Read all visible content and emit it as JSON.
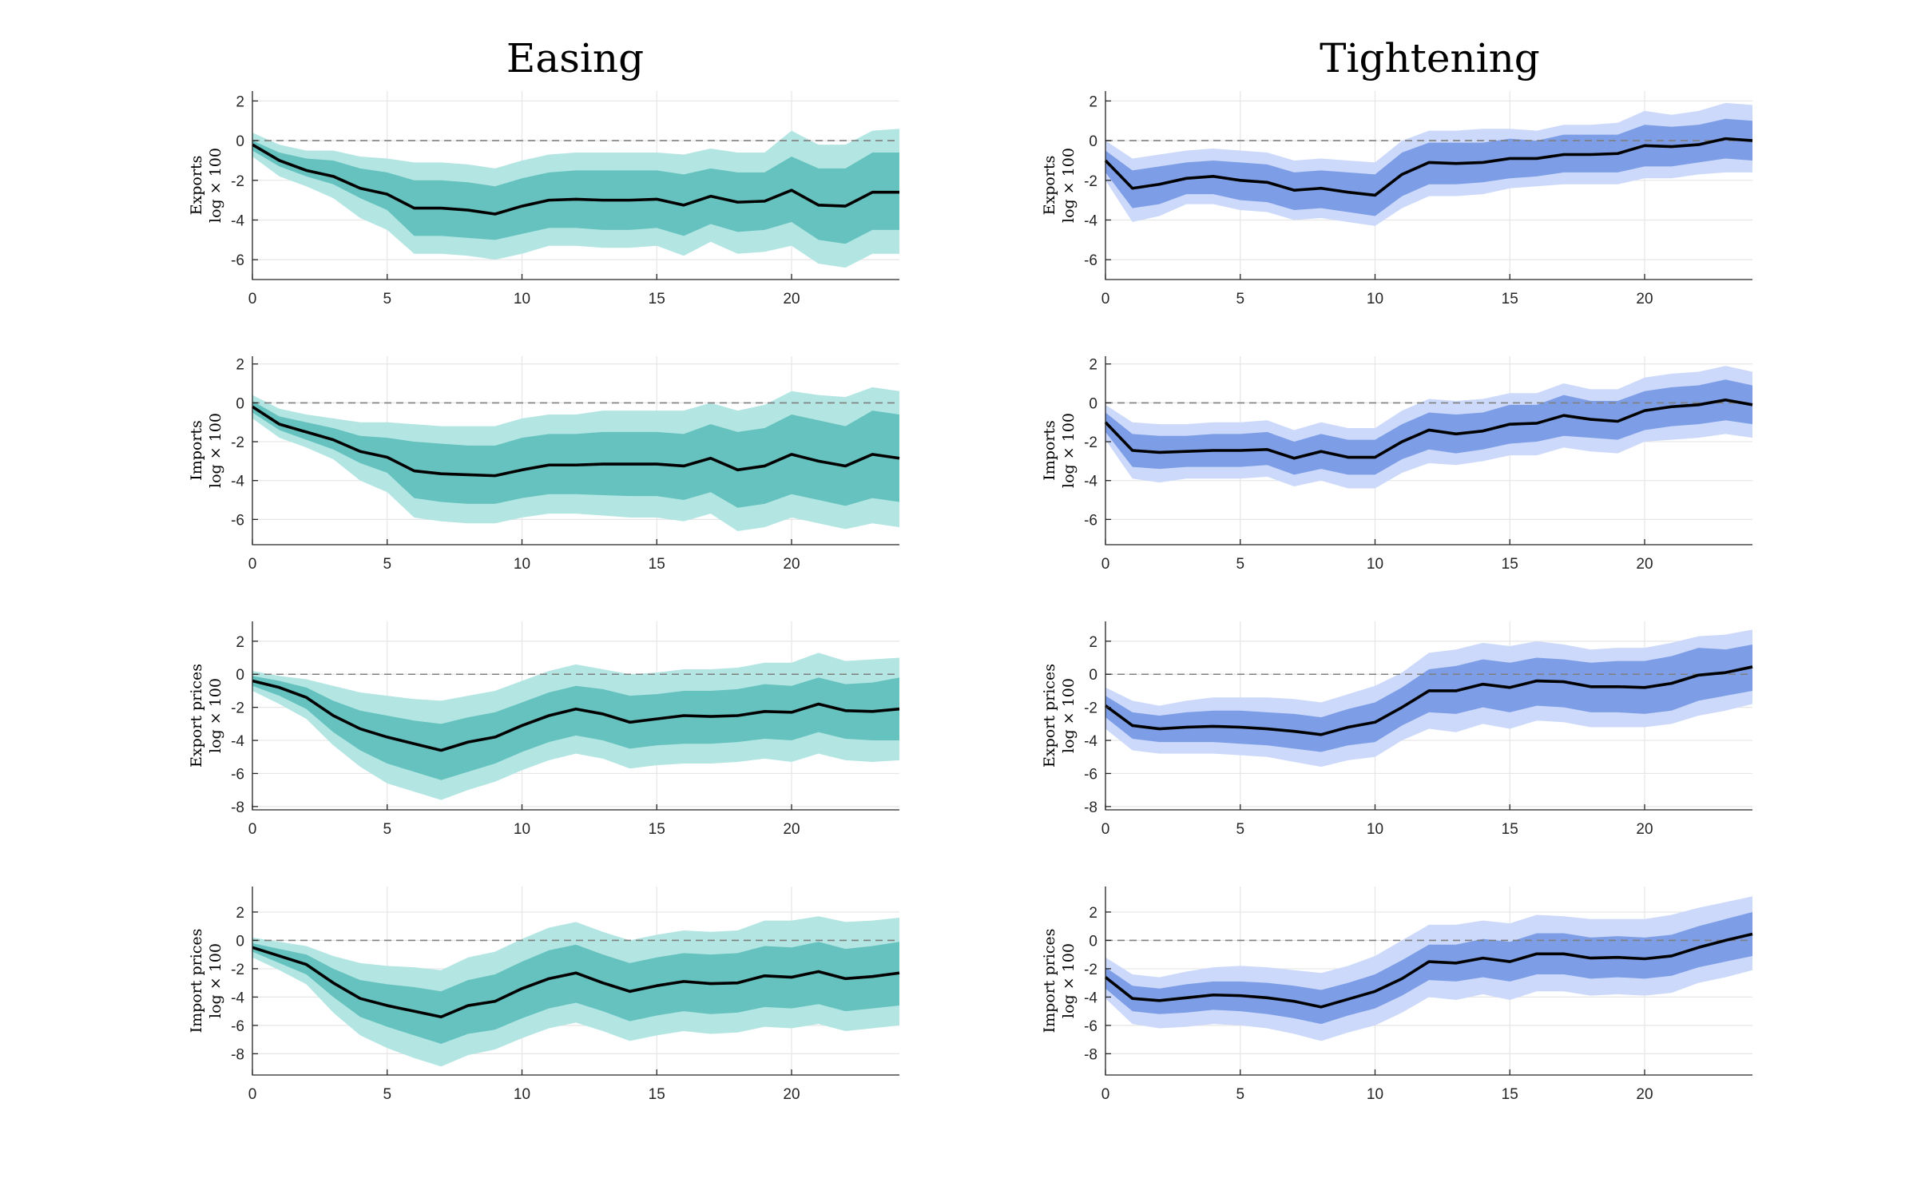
{
  "figure": {
    "columns": [
      {
        "title": "Easing",
        "outer_color": "#b3e6e3",
        "inner_color": "#66c2bf"
      },
      {
        "title": "Tightening",
        "outer_color": "#ccd9fa",
        "inner_color": "#7d9ee6"
      }
    ],
    "ylabel_unit": "log × 100"
  },
  "chart_data": [
    {
      "type": "line",
      "column": "Easing",
      "ylabel": "Exports",
      "xlim": [
        0,
        24
      ],
      "ylim": [
        -7,
        2.5
      ],
      "xticks": [
        0,
        5,
        10,
        15,
        20
      ],
      "yticks": [
        2,
        0,
        -2,
        -4,
        -6
      ],
      "median": [
        -0.2,
        -1.0,
        -1.5,
        -1.8,
        -2.4,
        -2.7,
        -3.4,
        -3.4,
        -3.5,
        -3.7,
        -3.3,
        -3.0,
        -2.95,
        -3.0,
        -3.0,
        -2.95,
        -3.25,
        -2.8,
        -3.1,
        -3.05,
        -2.5,
        -3.25,
        -3.3,
        -2.6,
        -2.6
      ],
      "inner_lower": [
        -0.5,
        -1.3,
        -1.8,
        -2.2,
        -2.9,
        -3.5,
        -4.8,
        -4.8,
        -4.9,
        -5.0,
        -4.7,
        -4.4,
        -4.4,
        -4.5,
        -4.5,
        -4.4,
        -4.8,
        -4.2,
        -4.6,
        -4.5,
        -4.1,
        -5.0,
        -5.2,
        -4.5,
        -4.5
      ],
      "inner_upper": [
        0.0,
        -0.6,
        -0.9,
        -1.0,
        -1.4,
        -1.6,
        -2.0,
        -2.0,
        -2.1,
        -2.3,
        -1.9,
        -1.6,
        -1.5,
        -1.5,
        -1.5,
        -1.5,
        -1.7,
        -1.4,
        -1.6,
        -1.6,
        -0.8,
        -1.4,
        -1.4,
        -0.6,
        -0.6
      ],
      "outer_lower": [
        -0.8,
        -1.8,
        -2.3,
        -2.9,
        -3.9,
        -4.5,
        -5.7,
        -5.7,
        -5.8,
        -6.0,
        -5.7,
        -5.3,
        -5.3,
        -5.4,
        -5.4,
        -5.3,
        -5.8,
        -5.1,
        -5.7,
        -5.6,
        -5.3,
        -6.2,
        -6.4,
        -5.7,
        -5.7
      ],
      "outer_upper": [
        0.4,
        -0.2,
        -0.5,
        -0.5,
        -0.8,
        -0.9,
        -1.1,
        -1.1,
        -1.2,
        -1.4,
        -1.0,
        -0.7,
        -0.6,
        -0.6,
        -0.6,
        -0.6,
        -0.7,
        -0.4,
        -0.6,
        -0.6,
        0.5,
        -0.2,
        -0.2,
        0.5,
        0.6
      ]
    },
    {
      "type": "line",
      "column": "Tightening",
      "ylabel": "Exports",
      "xlim": [
        0,
        24
      ],
      "ylim": [
        -7,
        2.5
      ],
      "xticks": [
        0,
        5,
        10,
        15,
        20
      ],
      "yticks": [
        2,
        0,
        -2,
        -4,
        -6
      ],
      "median": [
        -1.0,
        -2.4,
        -2.2,
        -1.9,
        -1.8,
        -2.0,
        -2.1,
        -2.5,
        -2.4,
        -2.6,
        -2.75,
        -1.7,
        -1.1,
        -1.15,
        -1.1,
        -0.9,
        -0.9,
        -0.7,
        -0.7,
        -0.65,
        -0.25,
        -0.3,
        -0.2,
        0.1,
        0.0
      ],
      "inner_lower": [
        -1.6,
        -3.4,
        -3.2,
        -2.7,
        -2.7,
        -3.0,
        -3.1,
        -3.5,
        -3.4,
        -3.6,
        -3.8,
        -2.8,
        -2.2,
        -2.2,
        -2.1,
        -1.9,
        -1.8,
        -1.6,
        -1.6,
        -1.6,
        -1.3,
        -1.3,
        -1.1,
        -0.9,
        -1.0
      ],
      "inner_upper": [
        -0.5,
        -1.5,
        -1.3,
        -1.1,
        -1.0,
        -1.1,
        -1.2,
        -1.6,
        -1.5,
        -1.6,
        -1.7,
        -0.6,
        -0.1,
        -0.1,
        -0.1,
        0.1,
        0.0,
        0.3,
        0.3,
        0.3,
        0.8,
        0.7,
        0.8,
        1.1,
        1.0
      ],
      "outer_lower": [
        -2.0,
        -4.1,
        -3.8,
        -3.2,
        -3.2,
        -3.5,
        -3.6,
        -4.0,
        -3.9,
        -4.1,
        -4.3,
        -3.4,
        -2.8,
        -2.8,
        -2.7,
        -2.4,
        -2.3,
        -2.2,
        -2.2,
        -2.2,
        -1.9,
        -1.9,
        -1.7,
        -1.6,
        -1.6
      ],
      "outer_upper": [
        0.0,
        -0.9,
        -0.7,
        -0.5,
        -0.4,
        -0.5,
        -0.6,
        -1.0,
        -0.9,
        -1.0,
        -1.1,
        0.0,
        0.5,
        0.5,
        0.6,
        0.6,
        0.5,
        0.8,
        0.8,
        0.9,
        1.5,
        1.3,
        1.5,
        1.9,
        1.8
      ]
    },
    {
      "type": "line",
      "column": "Easing",
      "ylabel": "Imports",
      "xlim": [
        0,
        24
      ],
      "ylim": [
        -7.3,
        2.4
      ],
      "xticks": [
        0,
        5,
        10,
        15,
        20
      ],
      "yticks": [
        2,
        0,
        -2,
        -4,
        -6
      ],
      "median": [
        -0.2,
        -1.1,
        -1.5,
        -1.9,
        -2.5,
        -2.8,
        -3.5,
        -3.65,
        -3.7,
        -3.75,
        -3.45,
        -3.2,
        -3.2,
        -3.15,
        -3.15,
        -3.15,
        -3.25,
        -2.85,
        -3.45,
        -3.25,
        -2.65,
        -3.0,
        -3.25,
        -2.65,
        -2.85
      ],
      "inner_lower": [
        -0.5,
        -1.4,
        -1.9,
        -2.4,
        -3.1,
        -3.6,
        -4.9,
        -5.1,
        -5.2,
        -5.2,
        -4.9,
        -4.7,
        -4.7,
        -4.75,
        -4.8,
        -4.8,
        -5.0,
        -4.6,
        -5.4,
        -5.2,
        -4.7,
        -5.0,
        -5.3,
        -4.9,
        -5.1
      ],
      "inner_upper": [
        0.1,
        -0.7,
        -1.0,
        -1.3,
        -1.7,
        -1.8,
        -2.0,
        -2.1,
        -2.2,
        -2.2,
        -1.8,
        -1.6,
        -1.6,
        -1.5,
        -1.5,
        -1.5,
        -1.6,
        -1.1,
        -1.5,
        -1.3,
        -0.6,
        -0.9,
        -1.2,
        -0.4,
        -0.6
      ],
      "outer_lower": [
        -0.8,
        -1.8,
        -2.3,
        -2.9,
        -4.0,
        -4.6,
        -5.9,
        -6.1,
        -6.2,
        -6.2,
        -5.9,
        -5.7,
        -5.7,
        -5.8,
        -5.9,
        -5.9,
        -6.1,
        -5.7,
        -6.6,
        -6.4,
        -5.9,
        -6.2,
        -6.5,
        -6.2,
        -6.4
      ],
      "outer_upper": [
        0.4,
        -0.3,
        -0.6,
        -0.8,
        -1.0,
        -1.0,
        -1.1,
        -1.2,
        -1.2,
        -1.2,
        -0.8,
        -0.6,
        -0.6,
        -0.4,
        -0.4,
        -0.4,
        -0.4,
        0.0,
        -0.4,
        -0.1,
        0.6,
        0.4,
        0.3,
        0.8,
        0.6
      ]
    },
    {
      "type": "line",
      "column": "Tightening",
      "ylabel": "Imports",
      "xlim": [
        0,
        24
      ],
      "ylim": [
        -7.3,
        2.4
      ],
      "xticks": [
        0,
        5,
        10,
        15,
        20
      ],
      "yticks": [
        2,
        0,
        -2,
        -4,
        -6
      ],
      "median": [
        -1.0,
        -2.45,
        -2.55,
        -2.5,
        -2.45,
        -2.45,
        -2.4,
        -2.85,
        -2.5,
        -2.8,
        -2.8,
        -2.0,
        -1.4,
        -1.6,
        -1.45,
        -1.1,
        -1.05,
        -0.65,
        -0.85,
        -0.95,
        -0.4,
        -0.2,
        -0.1,
        0.15,
        -0.1
      ],
      "inner_lower": [
        -1.5,
        -3.3,
        -3.4,
        -3.3,
        -3.3,
        -3.3,
        -3.2,
        -3.7,
        -3.4,
        -3.7,
        -3.7,
        -2.9,
        -2.4,
        -2.6,
        -2.4,
        -2.1,
        -2.0,
        -1.7,
        -1.8,
        -1.9,
        -1.4,
        -1.2,
        -1.1,
        -0.9,
        -1.1
      ],
      "inner_upper": [
        -0.5,
        -1.6,
        -1.7,
        -1.7,
        -1.6,
        -1.6,
        -1.5,
        -2.0,
        -1.6,
        -1.9,
        -1.9,
        -1.1,
        -0.5,
        -0.6,
        -0.5,
        -0.1,
        -0.1,
        0.4,
        0.1,
        0.1,
        0.6,
        0.8,
        0.9,
        1.2,
        0.9
      ],
      "outer_lower": [
        -1.9,
        -3.9,
        -4.1,
        -3.9,
        -3.9,
        -3.9,
        -3.8,
        -4.3,
        -4.0,
        -4.4,
        -4.4,
        -3.6,
        -3.1,
        -3.2,
        -3.0,
        -2.7,
        -2.7,
        -2.3,
        -2.5,
        -2.6,
        -2.0,
        -1.9,
        -1.8,
        -1.6,
        -1.8
      ],
      "outer_upper": [
        -0.1,
        -1.0,
        -1.1,
        -1.1,
        -1.0,
        -1.0,
        -0.9,
        -1.4,
        -1.0,
        -1.3,
        -1.3,
        -0.4,
        0.2,
        0.1,
        0.2,
        0.5,
        0.5,
        1.0,
        0.7,
        0.7,
        1.3,
        1.5,
        1.6,
        1.9,
        1.6
      ]
    },
    {
      "type": "line",
      "column": "Easing",
      "ylabel": "Export prices",
      "xlim": [
        0,
        24
      ],
      "ylim": [
        -8.2,
        3.2
      ],
      "xticks": [
        0,
        5,
        10,
        15,
        20
      ],
      "yticks": [
        2,
        0,
        -2,
        -4,
        -6,
        -8
      ],
      "median": [
        -0.4,
        -0.8,
        -1.4,
        -2.5,
        -3.3,
        -3.8,
        -4.2,
        -4.6,
        -4.1,
        -3.8,
        -3.1,
        -2.5,
        -2.1,
        -2.4,
        -2.9,
        -2.7,
        -2.5,
        -2.55,
        -2.5,
        -2.25,
        -2.3,
        -1.8,
        -2.2,
        -2.25,
        -2.1
      ],
      "inner_lower": [
        -0.7,
        -1.3,
        -2.1,
        -3.5,
        -4.6,
        -5.4,
        -5.9,
        -6.4,
        -5.9,
        -5.4,
        -4.7,
        -4.1,
        -3.7,
        -4.0,
        -4.5,
        -4.3,
        -4.2,
        -4.2,
        -4.1,
        -3.9,
        -4.0,
        -3.5,
        -3.9,
        -4.0,
        -4.0
      ],
      "inner_upper": [
        -0.1,
        -0.4,
        -0.8,
        -1.6,
        -2.2,
        -2.5,
        -2.8,
        -3.0,
        -2.6,
        -2.3,
        -1.7,
        -1.1,
        -0.7,
        -0.9,
        -1.3,
        -1.2,
        -1.0,
        -1.0,
        -0.9,
        -0.6,
        -0.7,
        -0.2,
        -0.6,
        -0.5,
        -0.2
      ],
      "outer_lower": [
        -1.0,
        -1.8,
        -2.7,
        -4.3,
        -5.6,
        -6.6,
        -7.1,
        -7.6,
        -7.0,
        -6.5,
        -5.8,
        -5.2,
        -4.8,
        -5.1,
        -5.7,
        -5.5,
        -5.4,
        -5.4,
        -5.3,
        -5.1,
        -5.3,
        -4.8,
        -5.2,
        -5.3,
        -5.2
      ],
      "outer_upper": [
        0.2,
        -0.1,
        -0.3,
        -0.7,
        -1.1,
        -1.3,
        -1.5,
        -1.6,
        -1.3,
        -1.0,
        -0.4,
        0.2,
        0.6,
        0.3,
        0.0,
        0.1,
        0.3,
        0.3,
        0.4,
        0.7,
        0.7,
        1.3,
        0.8,
        0.9,
        1.0
      ]
    },
    {
      "type": "line",
      "column": "Tightening",
      "ylabel": "Export prices",
      "xlim": [
        0,
        24
      ],
      "ylim": [
        -8.2,
        3.2
      ],
      "xticks": [
        0,
        5,
        10,
        15,
        20
      ],
      "yticks": [
        2,
        0,
        -2,
        -4,
        -6,
        -8
      ],
      "median": [
        -1.9,
        -3.1,
        -3.3,
        -3.2,
        -3.15,
        -3.2,
        -3.3,
        -3.45,
        -3.65,
        -3.2,
        -2.9,
        -2.0,
        -1.0,
        -1.0,
        -0.6,
        -0.8,
        -0.4,
        -0.45,
        -0.75,
        -0.75,
        -0.8,
        -0.55,
        -0.05,
        0.1,
        0.45
      ],
      "inner_lower": [
        -2.6,
        -3.9,
        -4.1,
        -4.1,
        -4.1,
        -4.2,
        -4.3,
        -4.5,
        -4.7,
        -4.3,
        -4.1,
        -3.1,
        -2.3,
        -2.4,
        -2.0,
        -2.3,
        -1.9,
        -2.0,
        -2.3,
        -2.3,
        -2.4,
        -2.2,
        -1.6,
        -1.3,
        -1.0
      ],
      "inner_upper": [
        -1.3,
        -2.3,
        -2.5,
        -2.3,
        -2.2,
        -2.2,
        -2.3,
        -2.4,
        -2.6,
        -2.1,
        -1.7,
        -0.8,
        0.3,
        0.5,
        0.9,
        0.7,
        1.0,
        0.9,
        0.7,
        0.8,
        0.8,
        1.1,
        1.6,
        1.5,
        1.8
      ],
      "outer_lower": [
        -3.3,
        -4.6,
        -4.8,
        -4.8,
        -4.8,
        -4.9,
        -5.0,
        -5.3,
        -5.6,
        -5.2,
        -5.0,
        -4.0,
        -3.3,
        -3.5,
        -3.0,
        -3.3,
        -2.8,
        -2.9,
        -3.2,
        -3.2,
        -3.2,
        -3.0,
        -2.5,
        -2.2,
        -1.8
      ],
      "outer_upper": [
        -0.8,
        -1.6,
        -1.9,
        -1.6,
        -1.4,
        -1.4,
        -1.4,
        -1.5,
        -1.7,
        -1.2,
        -0.7,
        0.1,
        1.3,
        1.5,
        1.9,
        1.7,
        2.0,
        1.8,
        1.5,
        1.6,
        1.6,
        1.9,
        2.3,
        2.4,
        2.7
      ]
    },
    {
      "type": "line",
      "column": "Easing",
      "ylabel": "Import prices",
      "xlim": [
        0,
        24
      ],
      "ylim": [
        -9.5,
        3.8
      ],
      "xticks": [
        0,
        5,
        10,
        15,
        20
      ],
      "yticks": [
        2,
        0,
        -2,
        -4,
        -6,
        -8
      ],
      "median": [
        -0.5,
        -1.1,
        -1.7,
        -3.0,
        -4.1,
        -4.6,
        -5.0,
        -5.4,
        -4.6,
        -4.3,
        -3.4,
        -2.7,
        -2.3,
        -3.0,
        -3.6,
        -3.2,
        -2.9,
        -3.05,
        -3.0,
        -2.5,
        -2.6,
        -2.2,
        -2.7,
        -2.55,
        -2.3
      ],
      "inner_lower": [
        -0.8,
        -1.6,
        -2.4,
        -4.0,
        -5.4,
        -6.1,
        -6.7,
        -7.3,
        -6.6,
        -6.3,
        -5.5,
        -4.8,
        -4.4,
        -5.0,
        -5.7,
        -5.3,
        -5.0,
        -5.2,
        -5.1,
        -4.7,
        -4.8,
        -4.5,
        -5.0,
        -4.8,
        -4.6
      ],
      "inner_upper": [
        -0.2,
        -0.6,
        -1.0,
        -2.0,
        -2.8,
        -3.1,
        -3.3,
        -3.6,
        -2.8,
        -2.4,
        -1.5,
        -0.7,
        -0.3,
        -1.0,
        -1.6,
        -1.2,
        -0.9,
        -1.0,
        -0.9,
        -0.4,
        -0.5,
        -0.1,
        -0.6,
        -0.4,
        -0.1
      ],
      "outer_lower": [
        -1.2,
        -2.1,
        -3.1,
        -5.1,
        -6.7,
        -7.6,
        -8.3,
        -8.9,
        -8.1,
        -7.7,
        -6.9,
        -6.2,
        -5.8,
        -6.4,
        -7.1,
        -6.7,
        -6.4,
        -6.6,
        -6.5,
        -6.1,
        -6.2,
        -5.9,
        -6.4,
        -6.2,
        -6.0
      ],
      "outer_upper": [
        0.2,
        -0.1,
        -0.4,
        -1.1,
        -1.6,
        -1.8,
        -1.9,
        -2.1,
        -1.2,
        -0.8,
        0.1,
        0.9,
        1.3,
        0.6,
        0.0,
        0.4,
        0.7,
        0.6,
        0.7,
        1.4,
        1.4,
        1.7,
        1.3,
        1.4,
        1.6
      ]
    },
    {
      "type": "line",
      "column": "Tightening",
      "ylabel": "Import prices",
      "xlim": [
        0,
        24
      ],
      "ylim": [
        -9.5,
        3.8
      ],
      "xticks": [
        0,
        5,
        10,
        15,
        20
      ],
      "yticks": [
        2,
        0,
        -2,
        -4,
        -6,
        -8
      ],
      "median": [
        -2.6,
        -4.1,
        -4.25,
        -4.05,
        -3.85,
        -3.9,
        -4.05,
        -4.3,
        -4.7,
        -4.15,
        -3.6,
        -2.7,
        -1.5,
        -1.6,
        -1.25,
        -1.5,
        -0.95,
        -0.95,
        -1.25,
        -1.2,
        -1.3,
        -1.1,
        -0.5,
        0.0,
        0.45
      ],
      "inner_lower": [
        -3.4,
        -5.0,
        -5.2,
        -5.1,
        -4.9,
        -5.0,
        -5.2,
        -5.5,
        -5.9,
        -5.3,
        -4.8,
        -3.9,
        -2.8,
        -2.9,
        -2.6,
        -2.9,
        -2.4,
        -2.4,
        -2.7,
        -2.6,
        -2.7,
        -2.5,
        -1.9,
        -1.5,
        -1.1
      ],
      "inner_upper": [
        -1.9,
        -3.2,
        -3.4,
        -3.1,
        -2.9,
        -2.9,
        -3.0,
        -3.2,
        -3.5,
        -3.0,
        -2.4,
        -1.4,
        -0.3,
        -0.3,
        0.1,
        -0.1,
        0.5,
        0.5,
        0.2,
        0.3,
        0.2,
        0.4,
        1.0,
        1.5,
        2.0
      ],
      "outer_lower": [
        -4.1,
        -5.9,
        -6.2,
        -6.1,
        -5.9,
        -6.0,
        -6.2,
        -6.6,
        -7.1,
        -6.5,
        -6.0,
        -5.1,
        -4.0,
        -4.2,
        -3.8,
        -4.2,
        -3.6,
        -3.6,
        -3.9,
        -3.8,
        -3.9,
        -3.7,
        -3.0,
        -2.6,
        -2.1
      ],
      "outer_upper": [
        -1.2,
        -2.4,
        -2.6,
        -2.2,
        -1.9,
        -1.8,
        -1.9,
        -2.1,
        -2.3,
        -1.8,
        -1.1,
        0.0,
        1.1,
        1.1,
        1.4,
        1.2,
        1.8,
        1.7,
        1.5,
        1.5,
        1.5,
        1.8,
        2.3,
        2.7,
        3.1
      ]
    }
  ]
}
